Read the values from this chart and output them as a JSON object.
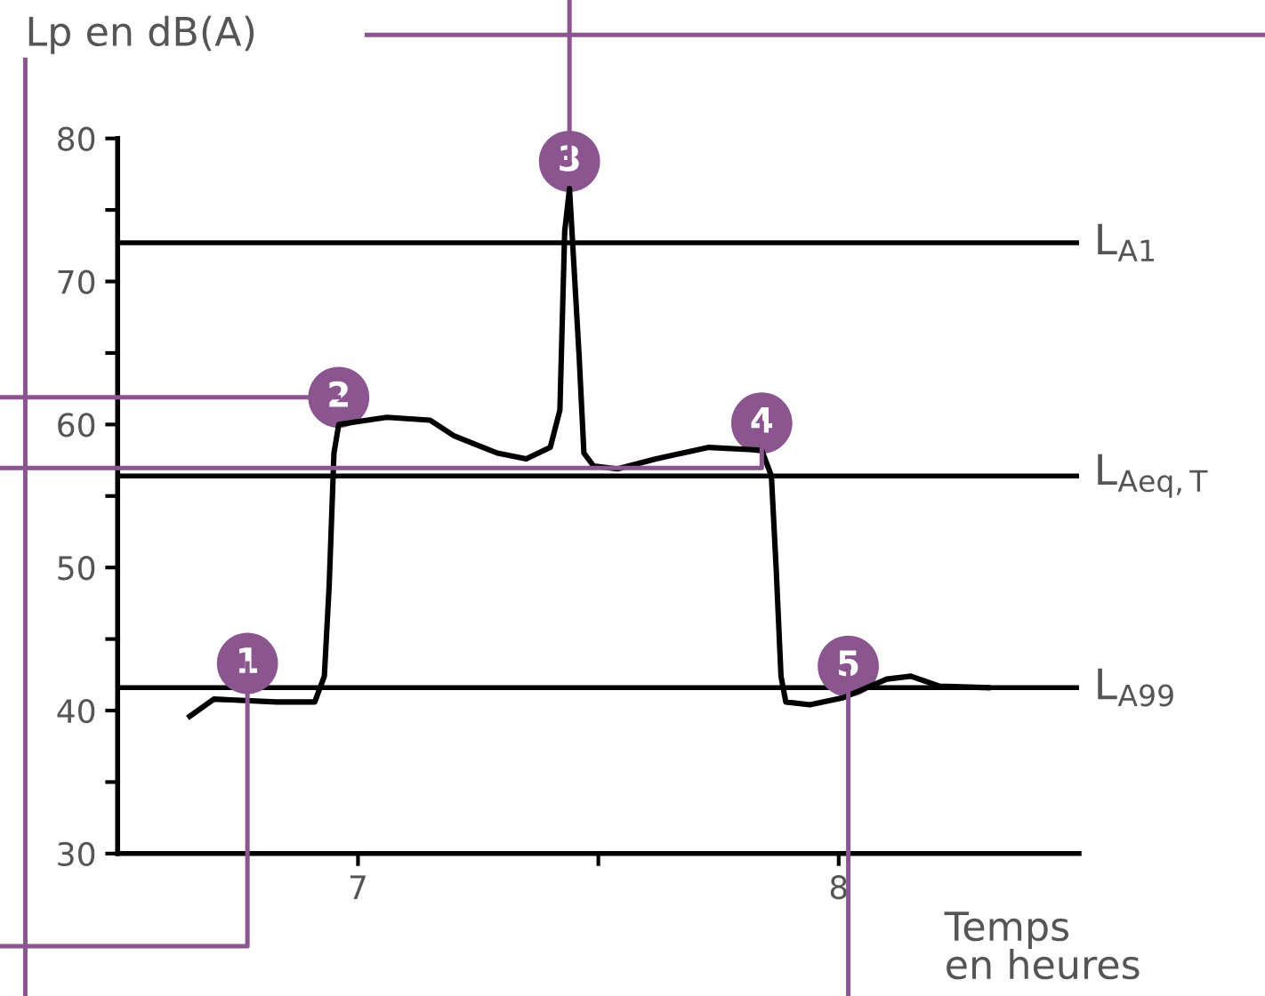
{
  "chart_data": {
    "type": "line",
    "ylabel": "Lp en dB(A)",
    "xlabel": "Temps\nen heures",
    "x": [
      6.65,
      6.7,
      6.83,
      6.91,
      6.93,
      6.94,
      6.95,
      6.96,
      7.06,
      7.15,
      7.2,
      7.29,
      7.35,
      7.4,
      7.42,
      7.43,
      7.44,
      7.46,
      7.47,
      7.49,
      7.54,
      7.62,
      7.73,
      7.84,
      7.86,
      7.87,
      7.88,
      7.89,
      7.94,
      8.01,
      8.1,
      8.15,
      8.21,
      8.31
    ],
    "series": [
      {
        "color": "#000000",
        "values": [
          39.6,
          40.8,
          40.6,
          40.6,
          42.4,
          48.7,
          58.0,
          60.0,
          60.5,
          60.3,
          59.2,
          58.0,
          57.6,
          58.4,
          61.0,
          73.5,
          76.5,
          64.8,
          58.0,
          57.1,
          56.9,
          57.6,
          58.4,
          58.2,
          56.4,
          49.9,
          42.4,
          40.6,
          40.4,
          40.9,
          42.2,
          42.4,
          41.7,
          41.6
        ]
      }
    ],
    "xlim": [
      6.5,
      8.5
    ],
    "xticks": [
      7,
      {
        "value": 7.5,
        "label": null
      },
      8
    ],
    "ylim": [
      30,
      80
    ],
    "yticks": [
      30,
      {
        "value": 35,
        "label": null
      },
      40,
      {
        "value": 45,
        "label": null
      },
      50,
      {
        "value": 55,
        "label": null
      },
      60,
      {
        "value": 65,
        "label": null
      },
      70,
      {
        "value": 75,
        "label": null
      },
      80
    ],
    "ref_lines": [
      {
        "axis": "y",
        "value": 72.7,
        "label": "L$_{A1}$",
        "color": "#000000"
      },
      {
        "axis": "y",
        "value": 56.4,
        "label": "L$_{Aeq,T}$",
        "color": "#000000"
      },
      {
        "axis": "y",
        "value": 41.6,
        "label": "L$_{A99}$",
        "color": "#000000"
      }
    ],
    "annotations": [
      {
        "text": "1",
        "x": 6.77,
        "y": 41.4
      },
      {
        "text": "2",
        "x": 6.96,
        "y": 60.0
      },
      {
        "text": "3",
        "x": 7.44,
        "y": 76.5
      },
      {
        "text": "4",
        "x": 7.84,
        "y": 58.2
      },
      {
        "text": "5",
        "x": 8.02,
        "y": 41.2
      }
    ],
    "grid": false,
    "legend": false,
    "marker": "none",
    "line_style": "solid"
  }
}
